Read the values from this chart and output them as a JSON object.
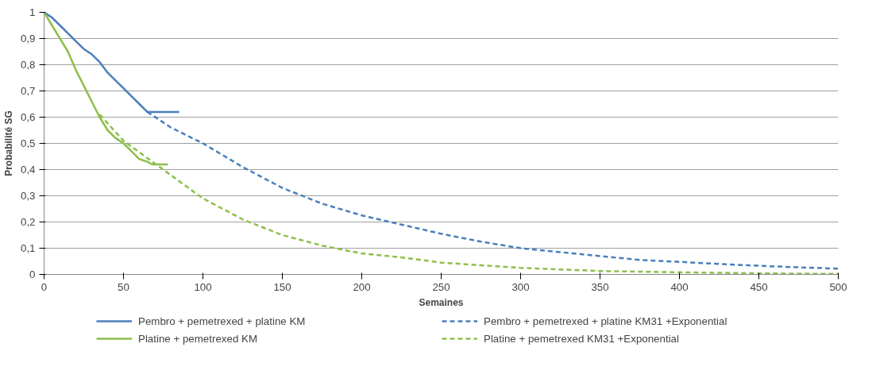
{
  "chart_data": {
    "type": "line",
    "xlabel": "Semaines",
    "ylabel": "Probabilité SG",
    "xlim": [
      0,
      500
    ],
    "ylim": [
      0,
      1
    ],
    "xticks": [
      0,
      50,
      100,
      150,
      200,
      250,
      300,
      350,
      400,
      450,
      500
    ],
    "yticks": [
      0,
      {
        "value": 0.1,
        "label": "0,1"
      },
      {
        "value": 0.2,
        "label": "0,2"
      },
      {
        "value": 0.3,
        "label": "0,3"
      },
      {
        "value": 0.4,
        "label": "0,4"
      },
      {
        "value": 0.5,
        "label": "0,5"
      },
      {
        "value": 0.6,
        "label": "0,6"
      },
      {
        "value": 0.7,
        "label": "0,7"
      },
      {
        "value": 0.8,
        "label": "0,8"
      },
      {
        "value": 0.9,
        "label": "0,9"
      },
      1
    ],
    "grid": "y",
    "legend": "bottom",
    "series": [
      {
        "name": "Pembro + pemetrexed + platine KM",
        "color": "#4a7ebb",
        "line_style": "solid",
        "x": [
          0,
          5,
          10,
          15,
          20,
          25,
          30,
          35,
          40,
          45,
          50,
          55,
          60,
          65,
          85
        ],
        "values": [
          1,
          0.98,
          0.95,
          0.92,
          0.89,
          0.86,
          0.84,
          0.81,
          0.77,
          0.74,
          0.71,
          0.68,
          0.65,
          0.62,
          0.62
        ]
      },
      {
        "name": "Pembro + pemetrexed + platine KM31 +Exponential",
        "color": "#4a7ebb",
        "line_style": "dashed",
        "x": [
          65,
          80,
          100,
          125,
          150,
          175,
          200,
          225,
          250,
          275,
          300,
          325,
          350,
          375,
          400,
          425,
          450,
          475,
          500
        ],
        "values": [
          0.62,
          0.56,
          0.5,
          0.41,
          0.33,
          0.27,
          0.225,
          0.19,
          0.155,
          0.125,
          0.1,
          0.085,
          0.07,
          0.055,
          0.048,
          0.04,
          0.033,
          0.027,
          0.022
        ]
      },
      {
        "name": "Platine + pemetrexed KM",
        "color": "#8cbf4c",
        "line_style": "solid",
        "x": [
          0,
          5,
          10,
          15,
          20,
          25,
          30,
          35,
          40,
          45,
          50,
          55,
          60,
          65,
          68,
          78
        ],
        "values": [
          1,
          0.95,
          0.9,
          0.85,
          0.78,
          0.72,
          0.66,
          0.6,
          0.55,
          0.52,
          0.5,
          0.47,
          0.44,
          0.43,
          0.42,
          0.42
        ]
      },
      {
        "name": "Platine + pemetrexed KM31 +Exponential",
        "color": "#8cbf4c",
        "line_style": "dashed",
        "x": [
          35,
          50,
          75,
          100,
          125,
          150,
          175,
          200,
          225,
          250,
          275,
          300,
          350,
          400,
          450,
          500
        ],
        "values": [
          0.61,
          0.51,
          0.4,
          0.29,
          0.21,
          0.15,
          0.11,
          0.08,
          0.065,
          0.045,
          0.035,
          0.025,
          0.013,
          0.008,
          0.004,
          0.002
        ]
      }
    ]
  }
}
